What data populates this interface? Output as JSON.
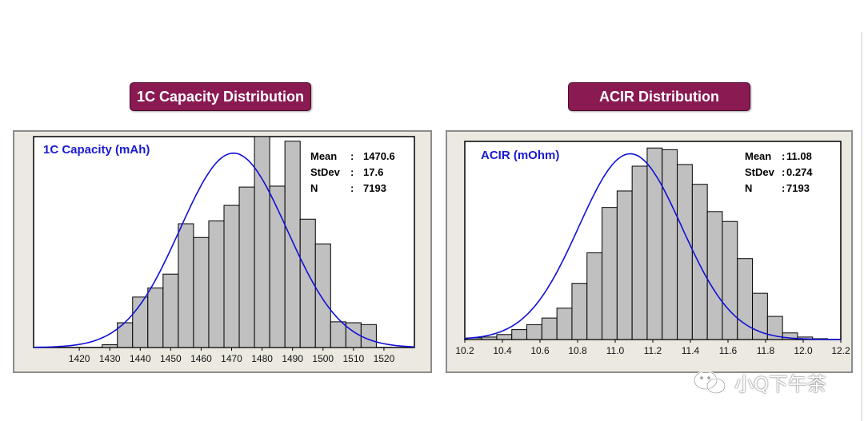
{
  "charts": [
    {
      "header": "1C Capacity Distribution",
      "chart_data": {
        "type": "bar",
        "subtype": "histogram",
        "title": "1C Capacity (mAh)",
        "stats": [
          {
            "label": "Mean",
            "value": "1470.6"
          },
          {
            "label": "StDev",
            "value": "17.6"
          },
          {
            "label": "N",
            "value": "7193"
          }
        ],
        "xlim": [
          1405,
          1530
        ],
        "ylim": [
          0,
          230
        ],
        "tick_values": [
          1420,
          1430,
          1440,
          1450,
          1460,
          1470,
          1480,
          1490,
          1500,
          1510,
          1520
        ],
        "tick_labels": [
          "1420",
          "1430",
          "1440",
          "1450",
          "1460",
          "1470",
          "1480",
          "1490",
          "1500",
          "1510",
          "1520"
        ],
        "bin_width": 5,
        "bins": [
          {
            "start": 1427.5,
            "value": 3
          },
          {
            "start": 1432.5,
            "value": 27
          },
          {
            "start": 1437.5,
            "value": 55
          },
          {
            "start": 1442.5,
            "value": 65
          },
          {
            "start": 1447.5,
            "value": 80
          },
          {
            "start": 1452.5,
            "value": 135
          },
          {
            "start": 1457.5,
            "value": 120
          },
          {
            "start": 1462.5,
            "value": 138
          },
          {
            "start": 1467.5,
            "value": 155
          },
          {
            "start": 1472.5,
            "value": 175
          },
          {
            "start": 1477.5,
            "value": 230
          },
          {
            "start": 1482.5,
            "value": 176
          },
          {
            "start": 1487.5,
            "value": 225
          },
          {
            "start": 1492.5,
            "value": 140
          },
          {
            "start": 1497.5,
            "value": 113
          },
          {
            "start": 1502.5,
            "value": 28
          },
          {
            "start": 1507.5,
            "value": 27
          },
          {
            "start": 1512.5,
            "value": 25
          }
        ],
        "fit": {
          "type": "normal",
          "mean": 1470.6,
          "sd": 17.6,
          "peak": 212,
          "range": [
            1405,
            1530
          ]
        },
        "colors": {
          "bar": "#c0c0c0",
          "curve": "#1010d8",
          "title": "#1a1ad0"
        }
      }
    },
    {
      "header": "ACIR Distribution",
      "chart_data": {
        "type": "bar",
        "subtype": "histogram",
        "title": "ACIR (mOhm)",
        "stats": [
          {
            "label": "Mean",
            "value": "11.08"
          },
          {
            "label": "StDev",
            "value": "0.274"
          },
          {
            "label": "N",
            "value": "7193"
          }
        ],
        "xlim": [
          10.2,
          12.2
        ],
        "ylim": [
          0,
          240
        ],
        "tick_values": [
          10.2,
          10.4,
          10.6,
          10.8,
          11.0,
          11.2,
          11.4,
          11.6,
          11.8,
          12.0,
          12.2
        ],
        "tick_labels": [
          "10.2",
          "10.4",
          "10.6",
          "10.8",
          "11.0",
          "11.2",
          "11.4",
          "11.6",
          "11.8",
          "12.0",
          "12.2"
        ],
        "bin_width": 0.08,
        "bins": [
          {
            "start": 10.21,
            "value": 2
          },
          {
            "start": 10.29,
            "value": 3
          },
          {
            "start": 10.37,
            "value": 6
          },
          {
            "start": 10.45,
            "value": 12
          },
          {
            "start": 10.53,
            "value": 18
          },
          {
            "start": 10.61,
            "value": 26
          },
          {
            "start": 10.69,
            "value": 38
          },
          {
            "start": 10.77,
            "value": 68
          },
          {
            "start": 10.85,
            "value": 105
          },
          {
            "start": 10.93,
            "value": 160
          },
          {
            "start": 11.01,
            "value": 180
          },
          {
            "start": 11.09,
            "value": 210
          },
          {
            "start": 11.17,
            "value": 232
          },
          {
            "start": 11.25,
            "value": 230
          },
          {
            "start": 11.33,
            "value": 212
          },
          {
            "start": 11.41,
            "value": 188
          },
          {
            "start": 11.49,
            "value": 155
          },
          {
            "start": 11.57,
            "value": 143
          },
          {
            "start": 11.65,
            "value": 98
          },
          {
            "start": 11.73,
            "value": 56
          },
          {
            "start": 11.81,
            "value": 28
          },
          {
            "start": 11.89,
            "value": 8
          },
          {
            "start": 11.97,
            "value": 3
          },
          {
            "start": 12.05,
            "value": 1
          }
        ],
        "fit": {
          "type": "normal",
          "mean": 11.08,
          "sd": 0.274,
          "peak": 225,
          "range": [
            10.2,
            12.2
          ]
        },
        "colors": {
          "bar": "#c0c0c0",
          "curve": "#1010d8",
          "title": "#1a1ad0"
        }
      }
    }
  ],
  "watermark": {
    "icon": "wechat-icon",
    "text": "小Q下午茶"
  }
}
